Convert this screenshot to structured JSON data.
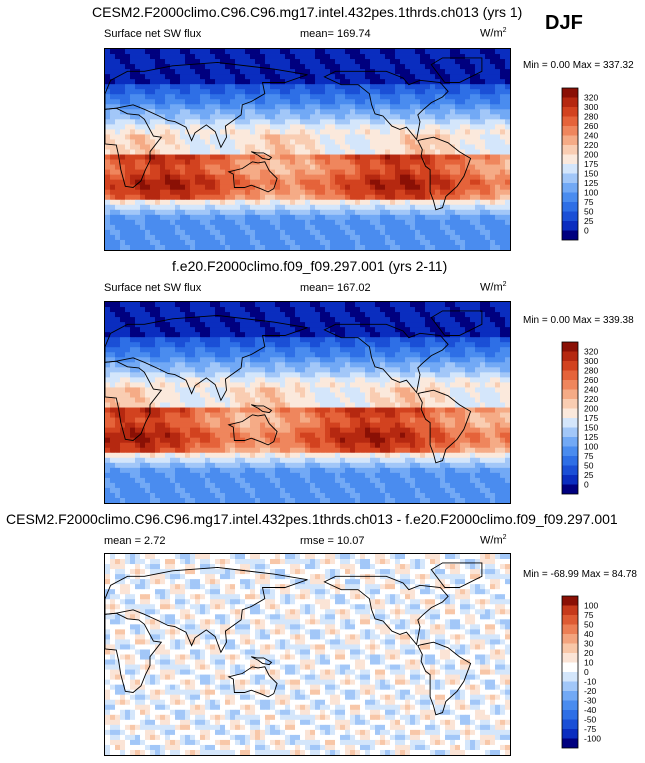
{
  "season": "DJF",
  "colors": {
    "full": [
      "#00007f",
      "#0a2dbf",
      "#1a4fd6",
      "#2e6fe6",
      "#4a8cef",
      "#72a9f5",
      "#a2c7f8",
      "#d4e6fb",
      "#fbe9dc",
      "#f9cdb2",
      "#f5ab86",
      "#ef865d",
      "#e5633a",
      "#d2421f",
      "#b52810",
      "#8a1005"
    ],
    "diff": [
      "#00007f",
      "#0a2dbf",
      "#1a4fd6",
      "#2e6fe6",
      "#4a8cef",
      "#72a9f5",
      "#a2c7f8",
      "#d4e6fb",
      "#ffffff",
      "#fbe4d6",
      "#f8c7a8",
      "#f3a47e",
      "#ec7f55",
      "#de5b33",
      "#c63a1b",
      "#8a1005"
    ]
  },
  "chart_data": [
    {
      "type": "heatmap",
      "title": "CESM2.F2000climo.C96.C96.mg17.intel.432pes.1thrds.ch013 (yrs 1)",
      "variable": "Surface net SW flux",
      "mean_text": "mean= 169.74",
      "units": "W/m",
      "units_sup": "2",
      "minmax_text": "Min =   0.00 Max = 337.32",
      "min": 0.0,
      "max": 337.32,
      "colorbar_levels": [
        "0",
        "25",
        "50",
        "75",
        "100",
        "125",
        "150",
        "175",
        "200",
        "220",
        "240",
        "260",
        "280",
        "300",
        "320"
      ]
    },
    {
      "type": "heatmap",
      "title": "f.e20.F2000climo.f09_f09.297.001 (yrs 2-11)",
      "variable": "Surface net SW flux",
      "mean_text": "mean= 167.02",
      "units": "W/m",
      "units_sup": "2",
      "minmax_text": "Min =   0.00 Max = 339.38",
      "min": 0.0,
      "max": 339.38,
      "colorbar_levels": [
        "0",
        "25",
        "50",
        "75",
        "100",
        "125",
        "150",
        "175",
        "200",
        "220",
        "240",
        "260",
        "280",
        "300",
        "320"
      ]
    },
    {
      "type": "heatmap",
      "title": "CESM2.F2000climo.C96.C96.mg17.intel.432pes.1thrds.ch013 - f.e20.F2000climo.f09_f09.297.001",
      "mean_text": "mean =   2.72",
      "rmse_text": "rmse =  10.07",
      "units": "W/m",
      "units_sup": "2",
      "minmax_text": "Min = -68.99 Max =  84.78",
      "min": -68.99,
      "max": 84.78,
      "colorbar_levels": [
        "-100",
        "-75",
        "-50",
        "-40",
        "-30",
        "-20",
        "-10",
        "0",
        "10",
        "20",
        "30",
        "40",
        "50",
        "75",
        "100"
      ]
    }
  ]
}
